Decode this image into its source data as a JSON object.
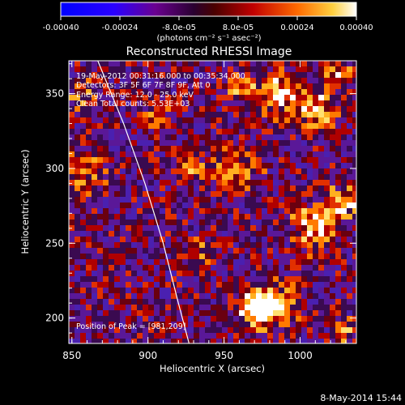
{
  "chart_data": {
    "type": "heatmap",
    "title": "Reconstructed RHESSI Image",
    "xlabel": "Heliocentric X (arcsec)",
    "ylabel": "Heliocentric Y (arcsec)",
    "xlim": [
      848,
      1037
    ],
    "ylim": [
      183,
      372
    ],
    "x_ticks": [
      850,
      900,
      950,
      1000
    ],
    "y_ticks": [
      200,
      250,
      300,
      350
    ],
    "colorbar": {
      "ticks": [
        "-0.00040",
        "-0.00024",
        "-8.0e-05",
        "8.0e-05",
        "0.00024",
        "0.00040"
      ],
      "tick_values": [
        -0.0004,
        -0.00024,
        -8e-05,
        8e-05,
        0.00024,
        0.0004
      ],
      "range": [
        -0.0004,
        0.0004
      ],
      "unit_label": "(photons cm⁻² s⁻¹ asec⁻²)"
    },
    "annotations": {
      "time": "19-May-2012 00:31:16.000 to 00:35:34.000",
      "detectors": "Detectors: 3F 5F 6F 7F 8F 9F, Att 0",
      "energy": "Energy Range: 12.0 - 25.0 keV",
      "clean": "Clean     Total counts: 5.53E+03",
      "peak": "Position of Peak = [981,209]"
    },
    "limb_curve": [
      [
        867,
        372
      ],
      [
        884,
        330
      ],
      [
        898,
        290
      ],
      [
        910,
        250
      ],
      [
        920,
        210
      ],
      [
        927,
        183
      ]
    ],
    "hot_spots": [
      {
        "x": 981,
        "y": 209,
        "w": 14,
        "v": 1.0
      },
      {
        "x": 970,
        "y": 205,
        "w": 10,
        "v": 0.85
      },
      {
        "x": 1010,
        "y": 262,
        "w": 16,
        "v": 0.8
      },
      {
        "x": 1030,
        "y": 278,
        "w": 12,
        "v": 0.7
      },
      {
        "x": 985,
        "y": 350,
        "w": 14,
        "v": 0.75
      },
      {
        "x": 1010,
        "y": 340,
        "w": 14,
        "v": 0.7
      },
      {
        "x": 1025,
        "y": 365,
        "w": 10,
        "v": 0.6
      },
      {
        "x": 960,
        "y": 355,
        "w": 10,
        "v": 0.55
      },
      {
        "x": 955,
        "y": 300,
        "w": 18,
        "v": 0.5
      },
      {
        "x": 925,
        "y": 300,
        "w": 10,
        "v": 0.45
      },
      {
        "x": 860,
        "y": 295,
        "w": 14,
        "v": 0.55
      },
      {
        "x": 858,
        "y": 350,
        "w": 12,
        "v": 0.5
      },
      {
        "x": 905,
        "y": 335,
        "w": 10,
        "v": 0.45
      },
      {
        "x": 1030,
        "y": 190,
        "w": 10,
        "v": 0.5
      },
      {
        "x": 935,
        "y": 245,
        "w": 10,
        "v": 0.4
      }
    ]
  },
  "footer": {
    "stamp": "8-May-2014 15:44"
  }
}
